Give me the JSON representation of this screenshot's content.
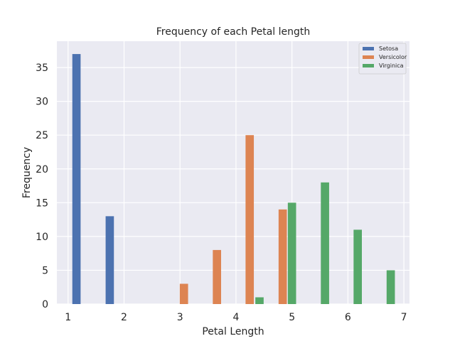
{
  "chart_data": {
    "type": "bar",
    "title": "Frequency of each Petal length",
    "xlabel": "Petal Length",
    "ylabel": "Frequency",
    "xlim": [
      0.8,
      7.1
    ],
    "ylim": [
      0,
      38.9
    ],
    "xticks": [
      1,
      2,
      3,
      4,
      5,
      6,
      7
    ],
    "yticks": [
      0,
      5,
      10,
      15,
      20,
      25,
      30,
      35
    ],
    "grid": true,
    "legend_position": "top-right",
    "bar_width": 0.148,
    "series": [
      {
        "name": "Setosa",
        "color": "#4c72b0",
        "x": [
          1.15,
          1.745
        ],
        "values": [
          37,
          13
        ]
      },
      {
        "name": "Versicolor",
        "color": "#dd8452",
        "x": [
          3.07,
          3.66,
          4.245,
          4.835
        ],
        "values": [
          3,
          8,
          25,
          14
        ]
      },
      {
        "name": "Virginica",
        "color": "#55a868",
        "x": [
          4.42,
          5.0,
          5.59,
          6.175,
          6.765
        ],
        "values": [
          1,
          15,
          18,
          11,
          5
        ]
      }
    ]
  }
}
